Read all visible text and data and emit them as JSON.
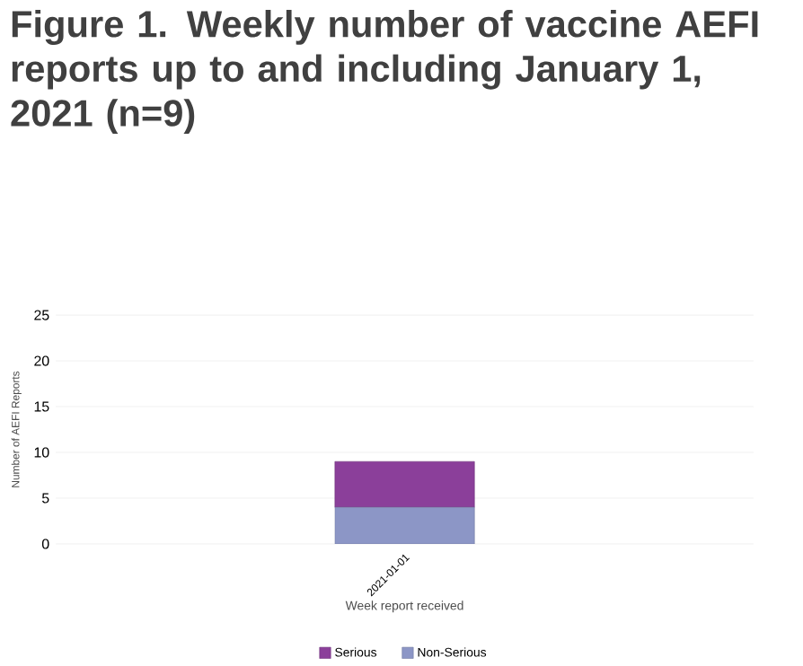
{
  "chart_data": {
    "type": "bar",
    "title": "Figure 1. Weekly number of vaccine AEFI reports up to and including January 1, 2021 (n=9)",
    "xlabel": "Week report received",
    "ylabel": "Number of AEFI Reports",
    "categories": [
      "2021-01-01"
    ],
    "series": [
      {
        "name": "Non-Serious",
        "color": "#8c96c6",
        "values": [
          4
        ]
      },
      {
        "name": "Serious",
        "color": "#8b3f9a",
        "values": [
          5
        ]
      }
    ],
    "stacked": true,
    "ylim": [
      0,
      25
    ],
    "yticks": [
      0,
      5,
      10,
      15,
      20,
      25
    ],
    "grid": "y",
    "legend": "bottom"
  }
}
